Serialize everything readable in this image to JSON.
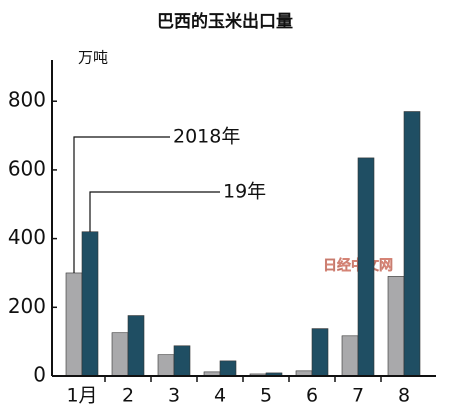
{
  "chart_data": {
    "type": "bar",
    "title": "巴西的玉米出口量",
    "y_label": "万吨",
    "categories": [
      "1月",
      "2",
      "3",
      "4",
      "5",
      "6",
      "7",
      "8"
    ],
    "series": [
      {
        "name": "2018年",
        "color": "#a9a9ab",
        "values": [
          300,
          126,
          62,
          12,
          6,
          15,
          117,
          290
        ]
      },
      {
        "name": "19年",
        "color": "#1f4e63",
        "values": [
          420,
          176,
          88,
          44,
          9,
          138,
          635,
          770
        ]
      }
    ],
    "ylim": [
      0,
      920
    ],
    "yticks": [
      0,
      200,
      400,
      600,
      800
    ],
    "watermark": "日经中文网"
  }
}
